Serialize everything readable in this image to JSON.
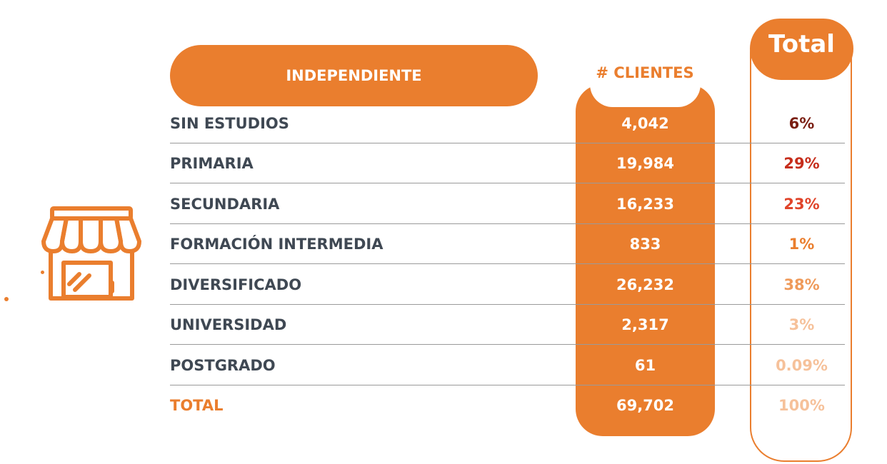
{
  "header": {
    "category_label": "INDEPENDIENTE",
    "clients_label": "# CLIENTES",
    "total_label": "Total"
  },
  "rows": [
    {
      "label": "SIN ESTUDIOS",
      "clients": "4,042",
      "pct": "6%",
      "pct_color": "#7A1E12"
    },
    {
      "label": "PRIMARIA",
      "clients": "19,984",
      "pct": "29%",
      "pct_color": "#C62E1C"
    },
    {
      "label": "SECUNDARIA",
      "clients": "16,233",
      "pct": "23%",
      "pct_color": "#E0442A"
    },
    {
      "label": "FORMACIÓN INTERMEDIA",
      "clients": "833",
      "pct": "1%",
      "pct_color": "#EA7E2E"
    },
    {
      "label": "DIVERSIFICADO",
      "clients": "26,232",
      "pct": "38%",
      "pct_color": "#EF9A5A"
    },
    {
      "label": "UNIVERSIDAD",
      "clients": "2,317",
      "pct": "3%",
      "pct_color": "#F6C19A"
    },
    {
      "label": "POSTGRADO",
      "clients": "61",
      "pct": "0.09%",
      "pct_color": "#F6C19A"
    },
    {
      "label": "TOTAL",
      "clients": "69,702",
      "pct": "100%",
      "pct_color": "#F6C19A",
      "is_total": true
    }
  ],
  "icons": {
    "store": "storefront-icon"
  },
  "colors": {
    "accent": "#EA7E2E",
    "label_text": "#3F4853"
  }
}
